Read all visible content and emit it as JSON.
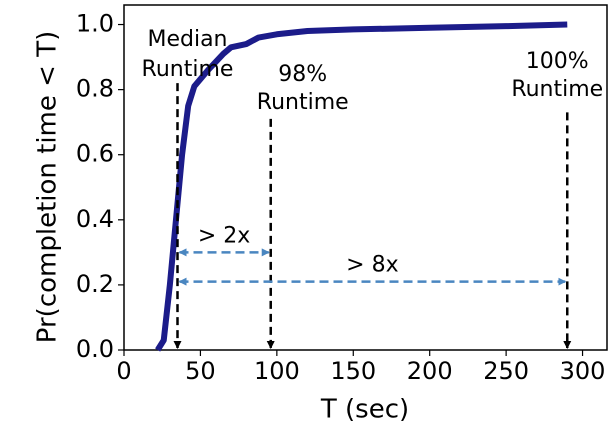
{
  "chart_data": {
    "type": "line",
    "xlabel": "T (sec)",
    "ylabel": "Pr(completion time < T)",
    "x": [
      22,
      26,
      30,
      34,
      38,
      42,
      46,
      55,
      65,
      70,
      80,
      88,
      100,
      120,
      150,
      200,
      250,
      290
    ],
    "series": [
      {
        "color": "#1c1c8a",
        "values": [
          0.0,
          0.03,
          0.2,
          0.4,
          0.6,
          0.75,
          0.81,
          0.86,
          0.91,
          0.93,
          0.94,
          0.96,
          0.97,
          0.98,
          0.985,
          0.99,
          0.995,
          1.0
        ]
      }
    ],
    "xlim": [
      0,
      316
    ],
    "ylim": [
      0,
      1.06
    ],
    "xticks": [
      0,
      50,
      100,
      150,
      200,
      250,
      300
    ],
    "yticks": [
      {
        "value": 0,
        "label": "0.0"
      },
      {
        "value": 0.2,
        "label": "0.2"
      },
      {
        "value": 0.4,
        "label": "0.4"
      },
      {
        "value": 0.6,
        "label": "0.6"
      },
      {
        "value": 0.8,
        "label": "0.8"
      },
      {
        "value": 1.0,
        "label": "1.0"
      }
    ],
    "markers": [
      {
        "lines": [
          "Median",
          "Runtime"
        ],
        "x": 35,
        "from_y": 0.82
      },
      {
        "lines": [
          "98%",
          "Runtime"
        ],
        "x": 96,
        "from_y": 0.71
      },
      {
        "lines": [
          "100%",
          "Runtime"
        ],
        "x": 290,
        "from_y": 0.73
      }
    ],
    "ranges": [
      {
        "label": "> 2x",
        "from": 35,
        "to": 96,
        "y": 0.3
      },
      {
        "label": "> 8x",
        "from": 35,
        "to": 290,
        "y": 0.21
      }
    ],
    "range_color": "#4a86c0"
  }
}
